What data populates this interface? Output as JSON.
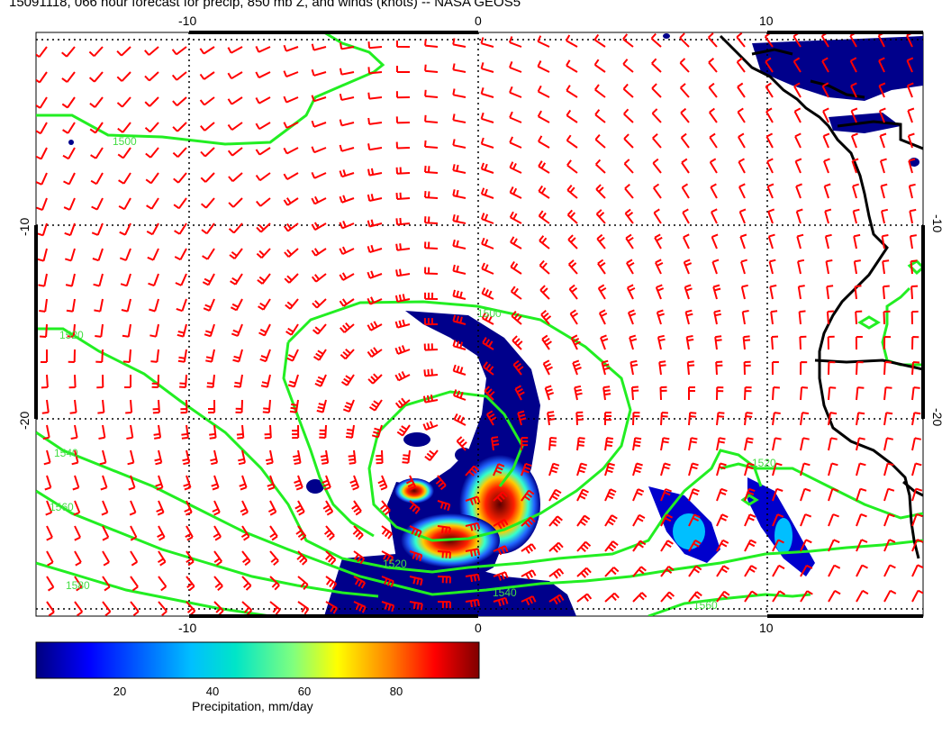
{
  "title": "15091118, 066 hour forecast for precip, 850 mb Z, and winds (knots) -- NASA GEOS5",
  "map": {
    "lon_ticks": [
      "-10",
      "0",
      "10"
    ],
    "lat_ticks": [
      "-10",
      "-20"
    ],
    "contour_labels": [
      "1500",
      "1500",
      "1520",
      "1520",
      "1540",
      "1540",
      "1560",
      "1560",
      "1580",
      "1520"
    ],
    "colors": {
      "wind_barbs": "#ff0000",
      "contours": "#22ee22",
      "coastline": "#000000",
      "grid": "#000000"
    }
  },
  "colorbar": {
    "title": "Precipitation, mm/day",
    "ticks": [
      "20",
      "40",
      "60",
      "80"
    ],
    "colors": [
      "#00007f",
      "#0000ff",
      "#00bfff",
      "#00e5c8",
      "#7fff7f",
      "#ffff00",
      "#ff7f00",
      "#ff0000",
      "#7f0000"
    ]
  }
}
